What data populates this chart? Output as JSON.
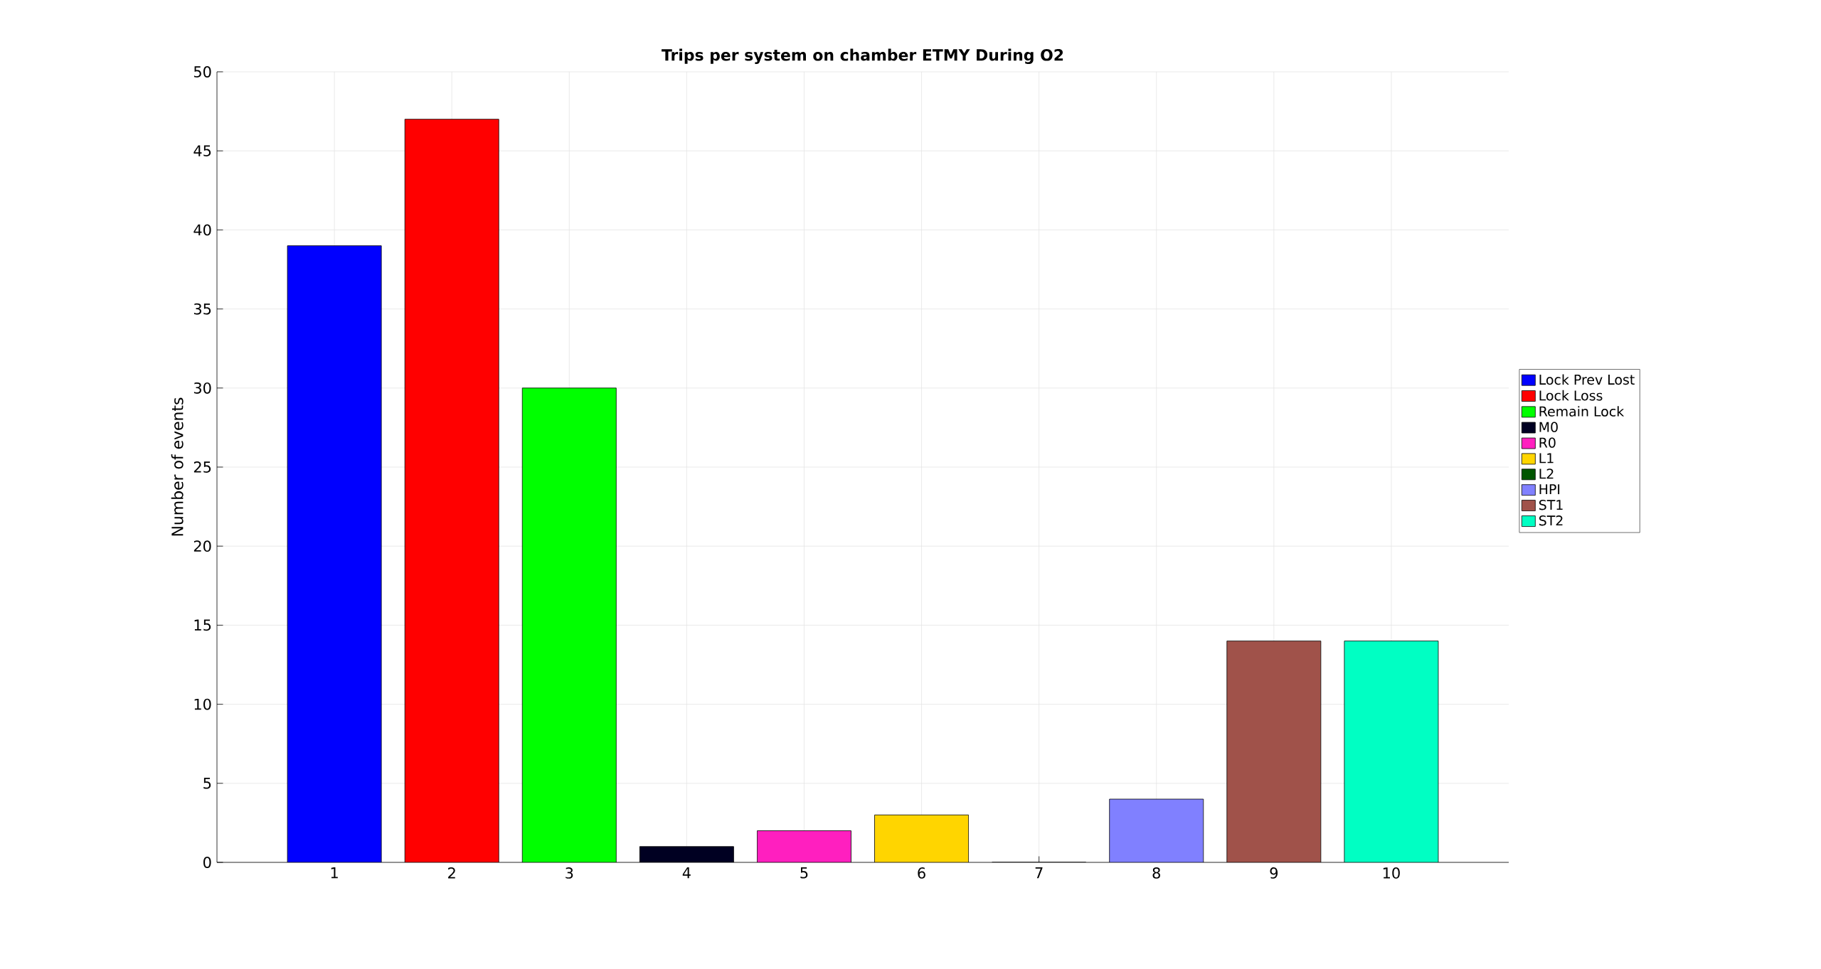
{
  "chart_data": {
    "type": "bar",
    "title": "Trips per system on chamber ETMY During O2",
    "ylabel": "Number of events",
    "xlim": [
      0,
      11
    ],
    "xticks": [
      1,
      2,
      3,
      4,
      5,
      6,
      7,
      8,
      9,
      10
    ],
    "ylim": [
      0,
      50
    ],
    "yticks": [
      0,
      5,
      10,
      15,
      20,
      25,
      30,
      35,
      40,
      45,
      50
    ],
    "grid": true,
    "legend": "right",
    "series": [
      {
        "name": "Lock Prev Lost",
        "color": "#0000ff",
        "x": [
          1
        ],
        "values": [
          39
        ]
      },
      {
        "name": "Lock Loss",
        "color": "#ff0000",
        "x": [
          2
        ],
        "values": [
          47
        ]
      },
      {
        "name": "Remain Lock",
        "color": "#00ff00",
        "x": [
          3
        ],
        "values": [
          30
        ]
      },
      {
        "name": "M0",
        "color": "#000022",
        "x": [
          4
        ],
        "values": [
          1
        ]
      },
      {
        "name": "R0",
        "color": "#ff1fbf",
        "x": [
          5
        ],
        "values": [
          2
        ]
      },
      {
        "name": "L1",
        "color": "#ffd500",
        "x": [
          6
        ],
        "values": [
          3
        ]
      },
      {
        "name": "L2",
        "color": "#005500",
        "x": [
          7
        ],
        "values": [
          0
        ]
      },
      {
        "name": "HPI",
        "color": "#8080ff",
        "x": [
          8
        ],
        "values": [
          4
        ]
      },
      {
        "name": "ST1",
        "color": "#a0524a",
        "x": [
          9
        ],
        "values": [
          14
        ]
      },
      {
        "name": "ST2",
        "color": "#00ffc3",
        "x": [
          10
        ],
        "values": [
          14
        ]
      }
    ]
  }
}
